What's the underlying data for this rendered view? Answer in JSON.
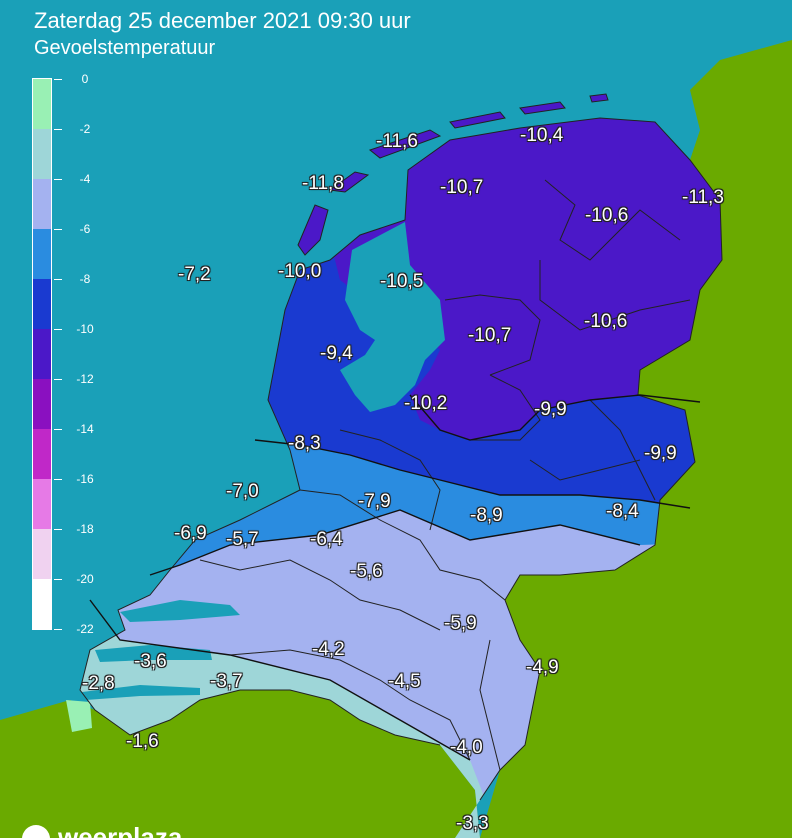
{
  "header": {
    "title": "Zaterdag 25 december 2021 09:30 uur",
    "subtitle": "Gevoelstemperatuur"
  },
  "colors": {
    "sea": "#1aa0b8",
    "land_outside": "#6aaa00",
    "band_0_to_-2": "#99f0b4",
    "band_-2_to_-4": "#9ed6d8",
    "band_-4_to_-6": "#a4b2f0",
    "band_-6_to_-8": "#2a8ce0",
    "band_-8_to_-10": "#1a3ad0",
    "band_-10_to_-12": "#4b18c8",
    "band_-12_to_-14": "#8a10c0",
    "band_-14_to_-16": "#c028c8",
    "band_-16_to_-18": "#e67ae6",
    "band_-18_to_-20": "#f0d2f0",
    "band_-20_to_-22": "#ffffff"
  },
  "legend": {
    "labels": [
      "0",
      "-2",
      "-4",
      "-6",
      "-8",
      "-10",
      "-12",
      "-14",
      "-16",
      "-18",
      "-20",
      "-22"
    ]
  },
  "values": [
    {
      "text": "-11,6"
    },
    {
      "text": "-10,4"
    },
    {
      "text": "-11,8"
    },
    {
      "text": "-10,7"
    },
    {
      "text": "-11,3"
    },
    {
      "text": "-10,6"
    },
    {
      "text": "-7,2"
    },
    {
      "text": "-10,0"
    },
    {
      "text": "-10,5"
    },
    {
      "text": "-10,7"
    },
    {
      "text": "-10,6"
    },
    {
      "text": "-9,4"
    },
    {
      "text": "-10,2"
    },
    {
      "text": "-9,9"
    },
    {
      "text": "-8,3"
    },
    {
      "text": "-9,9"
    },
    {
      "text": "-7,0"
    },
    {
      "text": "-7,9"
    },
    {
      "text": "-8,9"
    },
    {
      "text": "-8,4"
    },
    {
      "text": "-6,9"
    },
    {
      "text": "-5,7"
    },
    {
      "text": "-6,4"
    },
    {
      "text": "-5,6"
    },
    {
      "text": "-5,9"
    },
    {
      "text": "-4,2"
    },
    {
      "text": "-3,6"
    },
    {
      "text": "-4,5"
    },
    {
      "text": "-4,9"
    },
    {
      "text": "-2,8"
    },
    {
      "text": "-3,7"
    },
    {
      "text": "-1,6"
    },
    {
      "text": "-4,0"
    },
    {
      "text": "-3,3"
    }
  ],
  "logo": {
    "text": "weerplaza"
  }
}
